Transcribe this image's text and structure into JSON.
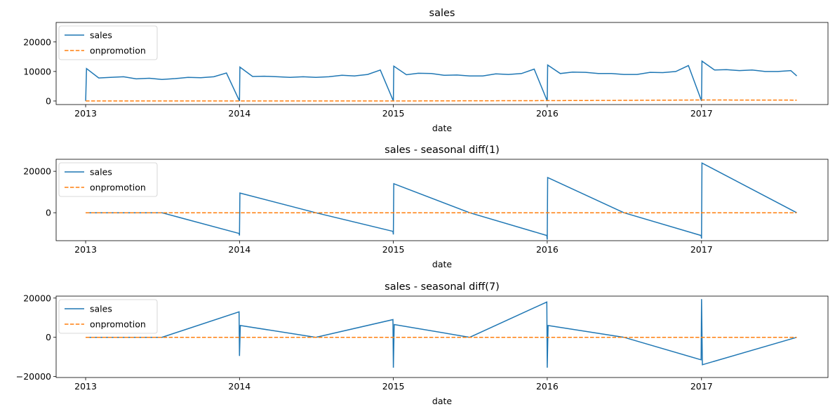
{
  "chart_data": [
    {
      "type": "line",
      "title": "sales",
      "xlabel": "date",
      "ylabel": "",
      "xlim": [
        "2012-10-23",
        "2017-10-28"
      ],
      "ylim": [
        -1200,
        26600
      ],
      "xticks": [
        "2013",
        "2014",
        "2015",
        "2016",
        "2017"
      ],
      "yticks": [
        0,
        10000,
        20000
      ],
      "ytick_labels": [
        "0",
        "10000",
        "20000"
      ],
      "legend": {
        "placement": "upper-left",
        "entries": [
          "sales",
          "onpromotion"
        ]
      },
      "grid": false,
      "series": [
        {
          "name": "sales",
          "color": "#1f77b4",
          "style": "solid",
          "x": [
            "2013-01-01",
            "2013-01-03",
            "2013-02-01",
            "2013-03-01",
            "2013-04-01",
            "2013-05-01",
            "2013-06-01",
            "2013-07-01",
            "2013-08-01",
            "2013-09-01",
            "2013-10-01",
            "2013-11-01",
            "2013-12-01",
            "2014-01-01",
            "2014-01-02",
            "2014-02-01",
            "2014-03-01",
            "2014-04-01",
            "2014-05-01",
            "2014-06-01",
            "2014-07-01",
            "2014-08-01",
            "2014-09-01",
            "2014-10-01",
            "2014-11-01",
            "2014-12-01",
            "2015-01-01",
            "2015-01-02",
            "2015-02-01",
            "2015-03-01",
            "2015-04-01",
            "2015-05-01",
            "2015-06-01",
            "2015-07-01",
            "2015-08-01",
            "2015-09-01",
            "2015-10-01",
            "2015-11-01",
            "2015-12-01",
            "2016-01-01",
            "2016-01-02",
            "2016-02-01",
            "2016-03-01",
            "2016-04-01",
            "2016-05-01",
            "2016-06-01",
            "2016-07-01",
            "2016-08-01",
            "2016-09-01",
            "2016-10-01",
            "2016-11-01",
            "2016-12-01",
            "2017-01-01",
            "2017-01-02",
            "2017-02-01",
            "2017-03-01",
            "2017-04-01",
            "2017-05-01",
            "2017-06-01",
            "2017-07-01",
            "2017-08-01",
            "2017-08-15"
          ],
          "y": [
            0,
            11000,
            7800,
            8000,
            8200,
            7500,
            7700,
            7300,
            7600,
            8000,
            7900,
            8200,
            9500,
            0,
            11500,
            8300,
            8400,
            8200,
            8000,
            8200,
            8000,
            8200,
            8700,
            8500,
            9000,
            10500,
            0,
            11800,
            8900,
            9400,
            9300,
            8700,
            8800,
            8500,
            8500,
            9200,
            9000,
            9300,
            10800,
            0,
            12200,
            9300,
            9800,
            9700,
            9300,
            9300,
            9000,
            9000,
            9700,
            9600,
            10000,
            12000,
            0,
            13500,
            10500,
            10600,
            10300,
            10500,
            10000,
            10000,
            10300,
            8500
          ]
        },
        {
          "name": "onpromotion",
          "color": "#ff7f0e",
          "style": "dashed",
          "x": [
            "2013-01-01",
            "2014-01-01",
            "2015-01-01",
            "2015-06-01",
            "2016-01-01",
            "2016-06-01",
            "2017-01-01",
            "2017-08-15"
          ],
          "y": [
            0,
            0,
            20,
            60,
            120,
            200,
            350,
            300
          ]
        }
      ]
    },
    {
      "type": "line",
      "title": "sales - seasonal diff(1)",
      "xlabel": "date",
      "ylabel": "",
      "xlim": [
        "2012-10-23",
        "2017-10-28"
      ],
      "ylim": [
        -13500,
        25800
      ],
      "xticks": [
        "2013",
        "2014",
        "2015",
        "2016",
        "2017"
      ],
      "yticks": [
        0,
        20000
      ],
      "ytick_labels": [
        "0",
        "20000"
      ],
      "legend": {
        "placement": "upper-left",
        "entries": [
          "sales",
          "onpromotion"
        ]
      },
      "grid": false,
      "series": [
        {
          "name": "sales",
          "color": "#1f77b4",
          "style": "solid",
          "x": [
            "2013-01-01",
            "2013-07-01",
            "2013-12-31",
            "2014-01-01",
            "2014-01-02",
            "2014-07-01",
            "2014-12-31",
            "2015-01-01",
            "2015-01-02",
            "2015-07-01",
            "2015-12-31",
            "2016-01-01",
            "2016-01-02",
            "2016-07-01",
            "2016-12-31",
            "2017-01-01",
            "2017-01-02",
            "2017-08-15"
          ],
          "y": [
            0,
            0,
            -10000,
            -11000,
            9500,
            0,
            -9000,
            -10500,
            14000,
            0,
            -11000,
            -13000,
            17000,
            0,
            -11000,
            -12500,
            24000,
            0
          ]
        },
        {
          "name": "onpromotion",
          "color": "#ff7f0e",
          "style": "dashed",
          "x": [
            "2013-01-01",
            "2015-01-01",
            "2016-01-01",
            "2017-01-01",
            "2017-08-15"
          ],
          "y": [
            0,
            0,
            0,
            0,
            0
          ]
        }
      ]
    },
    {
      "type": "line",
      "title": "sales - seasonal diff(7)",
      "xlabel": "date",
      "ylabel": "",
      "xlim": [
        "2012-10-23",
        "2017-10-28"
      ],
      "ylim": [
        -20500,
        21000
      ],
      "xticks": [
        "2013",
        "2014",
        "2015",
        "2016",
        "2017"
      ],
      "yticks": [
        -20000,
        0,
        20000
      ],
      "ytick_labels": [
        "−20000",
        "0",
        "20000"
      ],
      "legend": {
        "placement": "upper-left",
        "entries": [
          "sales",
          "onpromotion"
        ]
      },
      "grid": false,
      "series": [
        {
          "name": "sales",
          "color": "#1f77b4",
          "style": "solid",
          "x": [
            "2013-01-01",
            "2013-07-01",
            "2013-12-31",
            "2014-01-01",
            "2014-01-03",
            "2014-07-01",
            "2014-12-31",
            "2015-01-01",
            "2015-01-03",
            "2015-07-01",
            "2015-12-31",
            "2016-01-01",
            "2016-01-03",
            "2016-07-01",
            "2016-12-31",
            "2017-01-01",
            "2017-01-03",
            "2017-08-15"
          ],
          "y": [
            0,
            0,
            13000,
            -9500,
            6000,
            0,
            9000,
            -15500,
            6500,
            0,
            18000,
            -15500,
            6000,
            0,
            -11500,
            19500,
            -14000,
            0
          ]
        },
        {
          "name": "onpromotion",
          "color": "#ff7f0e",
          "style": "dashed",
          "x": [
            "2013-01-01",
            "2015-01-01",
            "2016-01-01",
            "2017-01-01",
            "2017-08-15"
          ],
          "y": [
            0,
            0,
            0,
            0,
            0
          ]
        }
      ]
    }
  ]
}
